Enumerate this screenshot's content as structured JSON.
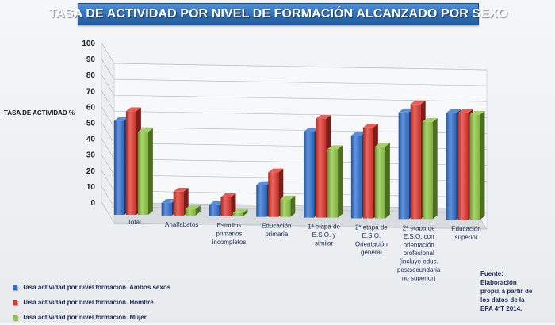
{
  "title": "TASA DE ACTIVIDAD POR NIVEL DE FORMACIÓN ALCANZADO POR SEXO",
  "ylabel": "TASA DE ACTIVIDAD %",
  "source_lines": [
    "Fuente:",
    "Elaboración",
    "propia a partir de",
    "los datos de la",
    "EPA 4ºT 2014."
  ],
  "colors": {
    "ambos": "#2f6fcf",
    "hombre": "#e0342c",
    "mujer": "#8cc63f",
    "banner": "#2e6fb8"
  },
  "chart_data": {
    "type": "bar",
    "title": "TASA DE ACTIVIDAD POR NIVEL DE FORMACIÓN ALCANZADO POR SEXO",
    "xlabel": "",
    "ylabel": "TASA DE ACTIVIDAD %",
    "ylim": [
      0,
      100
    ],
    "yticks": [
      0,
      10,
      20,
      30,
      40,
      50,
      60,
      70,
      80,
      90,
      100
    ],
    "grid": true,
    "legend_position": "bottom-left",
    "categories": [
      [
        "Total"
      ],
      [
        "Analfabetos"
      ],
      [
        "Estudios",
        "primarios",
        "incompletos"
      ],
      [
        "Educación",
        "primaria"
      ],
      [
        "1ª etapa de",
        "E.S.O. y",
        "similar"
      ],
      [
        "2ª etapa de",
        "E.S.O.",
        "Orientación",
        "general"
      ],
      [
        "2ª etapa de",
        "E.S.O. con",
        "orientación",
        "profesional",
        "(incluye educ.",
        "postsecundaria",
        "no superior)"
      ],
      [
        "Educación",
        "superior"
      ]
    ],
    "series": [
      {
        "name": "Tasa actividad por nivel formación. Ambos sexos",
        "values": [
          59,
          8,
          7,
          20,
          54,
          52,
          67,
          67
        ]
      },
      {
        "name": "Tasa actividad por nivel formación. Hombre",
        "values": [
          65,
          15,
          12,
          28,
          62,
          57,
          72,
          67
        ]
      },
      {
        "name": "Tasa actividad por nivel formación. Mujer",
        "values": [
          52,
          4,
          2,
          11,
          43,
          45,
          61,
          66
        ]
      }
    ]
  }
}
